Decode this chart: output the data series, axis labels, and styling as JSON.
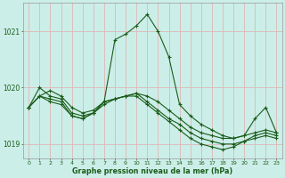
{
  "title": "Graphe pression niveau de la mer (hPa)",
  "hours": [
    0,
    1,
    2,
    3,
    4,
    5,
    6,
    7,
    8,
    9,
    10,
    11,
    12,
    13,
    14,
    15,
    16,
    17,
    18,
    19,
    20,
    21,
    22,
    23
  ],
  "series": [
    [
      1019.65,
      1019.85,
      1019.95,
      1019.85,
      1019.65,
      1019.55,
      1019.6,
      1019.75,
      1019.8,
      1019.85,
      1019.9,
      1019.85,
      1019.75,
      1019.6,
      1019.45,
      1019.3,
      1019.2,
      1019.15,
      1019.1,
      1019.1,
      1019.15,
      1019.2,
      1019.25,
      1019.2
    ],
    [
      1019.65,
      1020.0,
      1019.85,
      1019.8,
      1019.55,
      1019.5,
      1019.55,
      1019.75,
      1019.8,
      1019.85,
      1019.9,
      1019.75,
      1019.6,
      1019.45,
      1019.35,
      1019.2,
      1019.1,
      1019.05,
      1019.0,
      1019.0,
      1019.05,
      1019.1,
      1019.15,
      1019.1
    ],
    [
      1019.65,
      1019.85,
      1019.8,
      1019.75,
      1019.5,
      1019.45,
      1019.55,
      1019.7,
      1019.8,
      1019.85,
      1019.85,
      1019.7,
      1019.55,
      1019.4,
      1019.25,
      1019.1,
      1019.0,
      1018.95,
      1018.9,
      1018.95,
      1019.05,
      1019.15,
      1019.2,
      1019.15
    ],
    [
      1019.65,
      1019.85,
      1019.75,
      1019.7,
      1019.5,
      1019.45,
      1019.55,
      1019.75,
      1020.85,
      1020.95,
      1021.1,
      1021.3,
      1021.0,
      1020.55,
      1019.7,
      1019.5,
      1019.35,
      1019.25,
      1019.15,
      1019.1,
      1019.15,
      1019.45,
      1019.65,
      1019.2
    ]
  ],
  "line_color": "#1a5c1a",
  "marker": "+",
  "markersize": 3.5,
  "markeredgewidth": 0.8,
  "bg_color": "#cceee8",
  "grid_color": "#ddb8b8",
  "tick_color": "#1a5c1a",
  "ylim": [
    1018.75,
    1021.5
  ],
  "yticks": [
    1019,
    1020,
    1021
  ],
  "linewidth": 0.8
}
